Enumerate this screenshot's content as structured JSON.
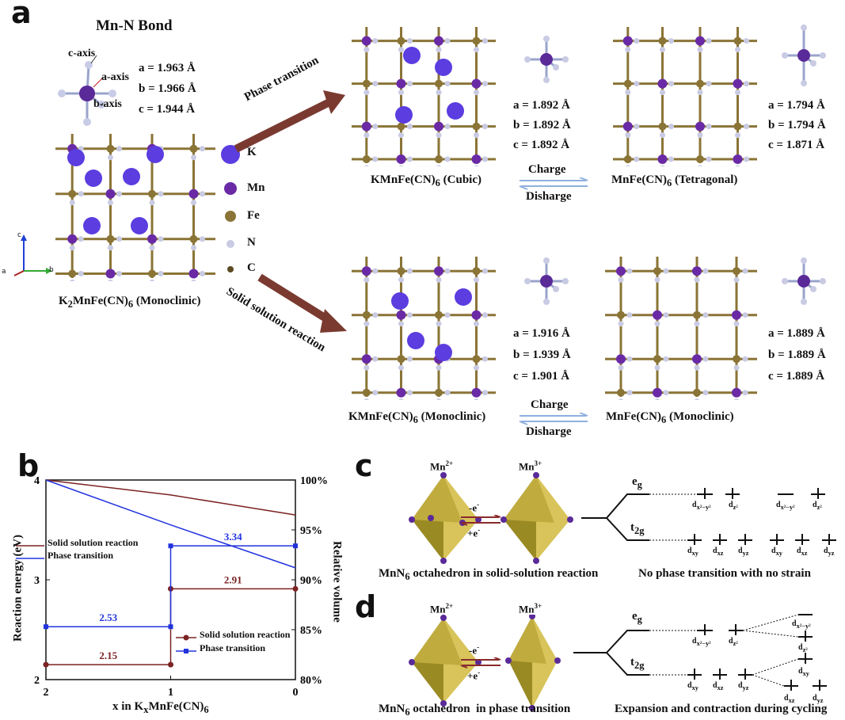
{
  "panel_a": {
    "label": "a",
    "title": "Mn-N Bond",
    "axes": [
      "c-axis",
      "a-axis",
      "b-axis"
    ],
    "monoclinic_bond": [
      "a = 1.963 Å",
      "b = 1.966 Å",
      "c = 1.944 Å"
    ],
    "mini_axes": [
      "c",
      "b",
      "a"
    ],
    "legend": [
      "K",
      "Mn",
      "Fe",
      "N",
      "C"
    ],
    "parent_label": "K2MnFe(CN)6 (Monoclinic)",
    "arrow_top": "Phase transition",
    "arrow_bottom": "Solid solution reaction",
    "cubic_label": "KMnFe(CN)6 (Cubic)",
    "cubic_bond": [
      "a = 1.892 Å",
      "b = 1.892 Å",
      "c = 1.892 Å"
    ],
    "tetragonal_label": "MnFe(CN)6 (Tetragonal)",
    "tetragonal_bond": [
      "a = 1.794 Å",
      "b = 1.794 Å",
      "c = 1.871 Å"
    ],
    "charge": "Charge",
    "discharge": "Disharge",
    "kmono_label": "KMnFe(CN)6 (Monoclinic)",
    "kmono_bond": [
      "a = 1.916 Å",
      "b = 1.939 Å",
      "c = 1.901 Å"
    ],
    "mono_label": "MnFe(CN)6 (Monoclinic)",
    "mono_bond": [
      "a = 1.889 Å",
      "b = 1.889 Å",
      "c = 1.889 Å"
    ]
  },
  "panel_b": {
    "label": "b",
    "legend_upper": [
      "Solid solution reaction",
      "Phase transition"
    ],
    "legend_lower": [
      "Solid solution reaction",
      "Phase transition"
    ],
    "colors": {
      "solid": "#7b2222",
      "phase": "#2233dd"
    }
  },
  "chart_data": {
    "type": "line",
    "xlabel": "x in KxMnFe(CN)6",
    "ylabel": "Reaction energy (eV)",
    "ylabel_right": "Relative volume",
    "xlim": [
      2,
      0
    ],
    "ylim": [
      2,
      4
    ],
    "ylim_right": [
      80,
      100
    ],
    "x_ticks": [
      "2",
      "1",
      "0"
    ],
    "y_ticks": [
      "2",
      "3",
      "4"
    ],
    "y_right_ticks": [
      "80%",
      "85%",
      "90%",
      "95%",
      "100%"
    ],
    "volume_series": [
      {
        "name": "Solid solution reaction",
        "x": [
          2,
          1,
          0
        ],
        "y": [
          100,
          98.5,
          96.5
        ]
      },
      {
        "name": "Phase transition",
        "x": [
          2,
          1,
          0
        ],
        "y": [
          100,
          95.5,
          91.2
        ]
      }
    ],
    "energy_series": [
      {
        "name": "Solid solution reaction",
        "x": [
          2,
          1,
          1,
          0
        ],
        "y": [
          2.15,
          2.15,
          2.91,
          2.91
        ]
      },
      {
        "name": "Phase transition",
        "x": [
          2,
          1,
          1,
          0
        ],
        "y": [
          2.53,
          2.53,
          3.34,
          3.34
        ]
      }
    ],
    "data_labels": [
      "2.15",
      "2.91",
      "2.53",
      "3.34"
    ]
  },
  "panel_c": {
    "label": "c",
    "ion_left": "Mn2+",
    "ion_right": "Mn3+",
    "minus_e": "-e-",
    "plus_e": "+e-",
    "eg": "eg",
    "t2g": "t2g",
    "caption_left": "MnN6 octahedron in solid-solution reaction",
    "caption_right": "No phase transition with no strain"
  },
  "panel_d": {
    "label": "d",
    "ion_left": "Mn2+",
    "ion_right": "Mn3+",
    "minus_e": "-e-",
    "plus_e": "+e-",
    "eg": "eg",
    "t2g": "t2g",
    "caption_left": "MnN6 octahedron  in phase transition",
    "caption_right": "Expansion and contraction during cycling"
  }
}
